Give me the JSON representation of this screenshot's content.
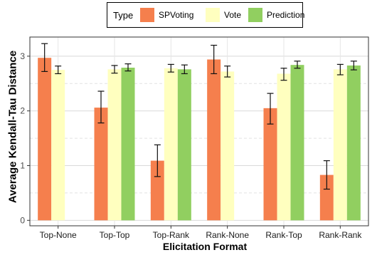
{
  "chart_data": {
    "type": "bar",
    "xlabel": "Elicitation Format",
    "ylabel": "Average Kendall-Tau Distance",
    "legend_title": "Type",
    "legend_position": "top",
    "grid": true,
    "ylim": [
      -0.1,
      3.35
    ],
    "yticks": [
      0,
      1,
      2,
      3
    ],
    "categories": [
      "Top-None",
      "Top-Top",
      "Top-Rank",
      "Rank-None",
      "Rank-Top",
      "Rank-Rank"
    ],
    "series": [
      {
        "name": "SPVoting",
        "color": "#f57f4d",
        "values": [
          2.97,
          2.06,
          1.09,
          2.94,
          2.05,
          0.83
        ],
        "error_low": [
          2.72,
          1.78,
          0.8,
          2.68,
          1.76,
          0.57
        ],
        "error_high": [
          3.23,
          2.36,
          1.38,
          3.2,
          2.32,
          1.09
        ]
      },
      {
        "name": "Vote",
        "color": "#ffffbf",
        "values": [
          2.75,
          2.76,
          2.78,
          2.72,
          2.68,
          2.76
        ],
        "error_low": [
          2.68,
          2.69,
          2.71,
          2.62,
          2.56,
          2.66
        ],
        "error_high": [
          2.82,
          2.83,
          2.85,
          2.82,
          2.78,
          2.85
        ]
      },
      {
        "name": "Prediction",
        "color": "#91cf60",
        "values": [
          null,
          2.79,
          2.76,
          null,
          2.84,
          2.83
        ],
        "error_low": [
          null,
          2.73,
          2.68,
          null,
          2.78,
          2.75
        ],
        "error_high": [
          null,
          2.86,
          2.84,
          null,
          2.91,
          2.91
        ]
      }
    ]
  }
}
